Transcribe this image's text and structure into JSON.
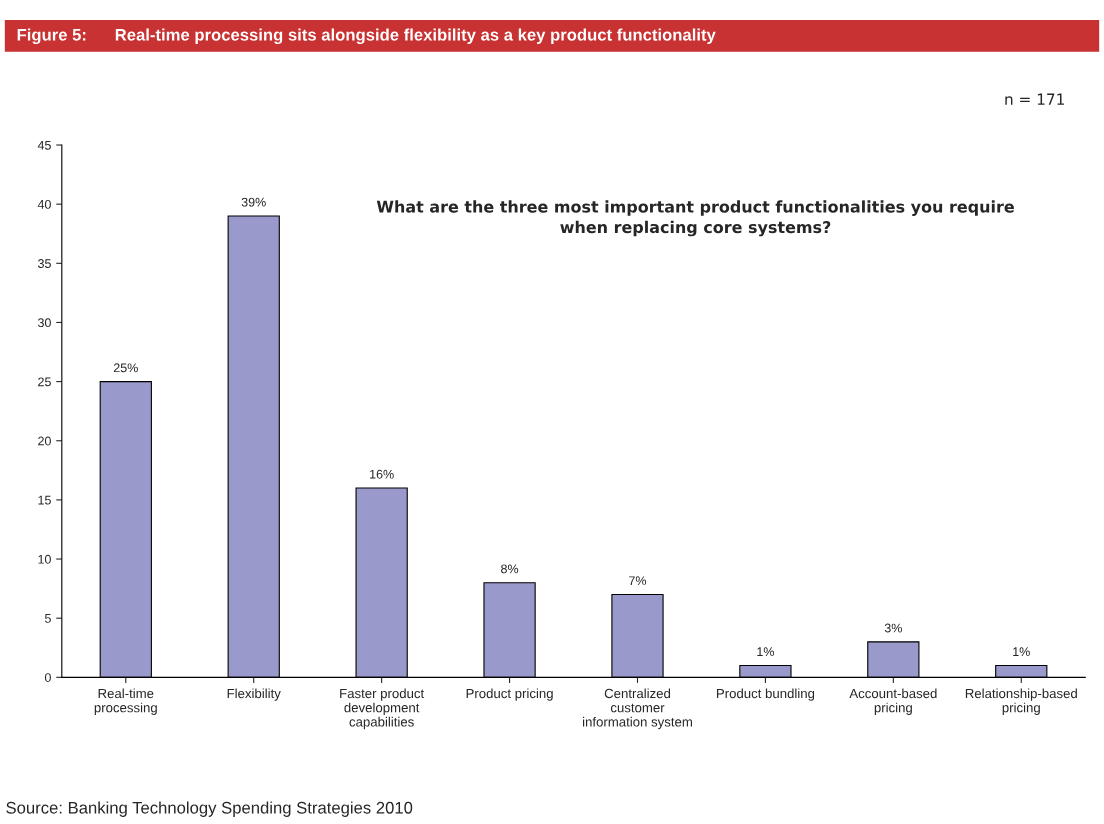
{
  "chart_data": {
    "type": "bar",
    "title": "Figure 5:      Real-time processing sits alongside flexibility as a key product functionality",
    "categories": [
      "Real-time processing",
      "Flexibility",
      "Faster product development capabilities",
      "Product pricing",
      "Centralized customer information system",
      "Product bundling",
      "Account-based pricing",
      "Relationship-based pricing"
    ],
    "values": [
      25,
      39,
      16,
      8,
      7,
      1,
      3,
      1
    ],
    "value_labels": [
      "25%",
      "39%",
      "16%",
      "8%",
      "7%",
      "1%",
      "3%",
      "1%"
    ],
    "color": "#9999cc",
    "ylim": [
      0,
      45
    ],
    "yticks": [
      0,
      5,
      10,
      15,
      20,
      25,
      30,
      35,
      40,
      45
    ],
    "grid": false,
    "legend": false,
    "annotations": [
      "n = 171",
      "What are the three most important product functionalities you require when replacing core systems?",
      "Source: Banking Technology Spending Strategies 2010"
    ]
  }
}
